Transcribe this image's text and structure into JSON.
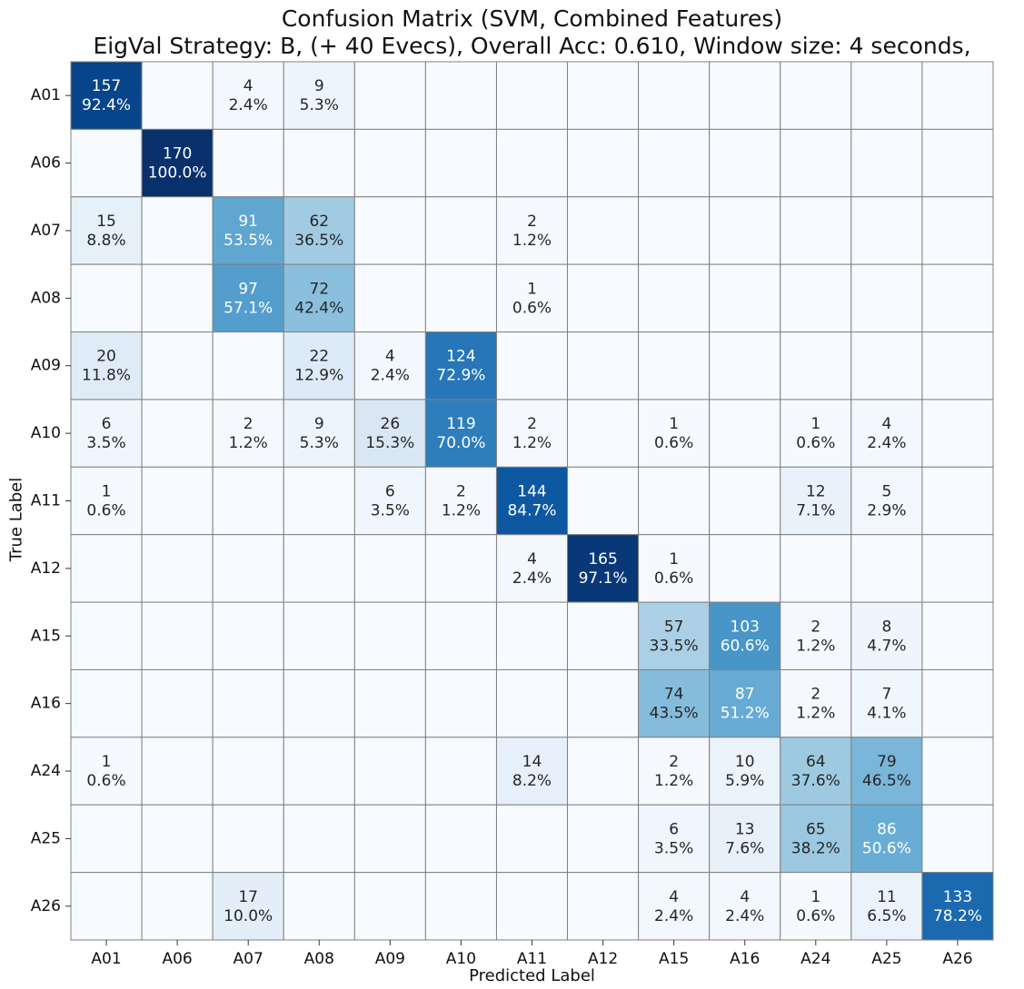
{
  "chart_data": {
    "type": "heatmap",
    "title": "Confusion Matrix (SVM, Combined Features)",
    "subtitle": "EigVal Strategy: B,  (+ 40 Evecs), Overall Acc: 0.610, Window size: 4 seconds,",
    "xlabel": "Predicted Label",
    "ylabel": "True Label",
    "labels": [
      "A01",
      "A06",
      "A07",
      "A08",
      "A09",
      "A10",
      "A11",
      "A12",
      "A15",
      "A16",
      "A24",
      "A25",
      "A26"
    ],
    "row_total": 170,
    "colormap": "Blues",
    "vmax": 170,
    "overall_accuracy": 0.61,
    "matrix": [
      [
        157,
        0,
        4,
        9,
        0,
        0,
        0,
        0,
        0,
        0,
        0,
        0,
        0
      ],
      [
        0,
        170,
        0,
        0,
        0,
        0,
        0,
        0,
        0,
        0,
        0,
        0,
        0
      ],
      [
        15,
        0,
        91,
        62,
        0,
        0,
        2,
        0,
        0,
        0,
        0,
        0,
        0
      ],
      [
        0,
        0,
        97,
        72,
        0,
        0,
        1,
        0,
        0,
        0,
        0,
        0,
        0
      ],
      [
        20,
        0,
        0,
        22,
        4,
        124,
        0,
        0,
        0,
        0,
        0,
        0,
        0
      ],
      [
        6,
        0,
        2,
        9,
        26,
        119,
        2,
        0,
        1,
        0,
        1,
        4,
        0
      ],
      [
        1,
        0,
        0,
        0,
        6,
        2,
        144,
        0,
        0,
        0,
        12,
        5,
        0
      ],
      [
        0,
        0,
        0,
        0,
        0,
        0,
        4,
        165,
        1,
        0,
        0,
        0,
        0
      ],
      [
        0,
        0,
        0,
        0,
        0,
        0,
        0,
        0,
        57,
        103,
        2,
        8,
        0
      ],
      [
        0,
        0,
        0,
        0,
        0,
        0,
        0,
        0,
        74,
        87,
        2,
        7,
        0
      ],
      [
        1,
        0,
        0,
        0,
        0,
        0,
        14,
        0,
        2,
        10,
        64,
        79,
        0
      ],
      [
        0,
        0,
        0,
        0,
        0,
        0,
        0,
        0,
        6,
        13,
        65,
        86,
        0
      ],
      [
        0,
        0,
        17,
        0,
        0,
        0,
        0,
        0,
        4,
        4,
        1,
        11,
        133
      ]
    ],
    "percent": [
      [
        "92.4%",
        "",
        "2.4%",
        "5.3%",
        "",
        "",
        "",
        "",
        "",
        "",
        "",
        "",
        ""
      ],
      [
        "",
        "100.0%",
        "",
        "",
        "",
        "",
        "",
        "",
        "",
        "",
        "",
        "",
        ""
      ],
      [
        "8.8%",
        "",
        "53.5%",
        "36.5%",
        "",
        "",
        "1.2%",
        "",
        "",
        "",
        "",
        "",
        ""
      ],
      [
        "",
        "",
        "57.1%",
        "42.4%",
        "",
        "",
        "0.6%",
        "",
        "",
        "",
        "",
        "",
        ""
      ],
      [
        "11.8%",
        "",
        "",
        "12.9%",
        "2.4%",
        "72.9%",
        "",
        "",
        "",
        "",
        "",
        "",
        ""
      ],
      [
        "3.5%",
        "",
        "1.2%",
        "5.3%",
        "15.3%",
        "70.0%",
        "1.2%",
        "",
        "0.6%",
        "",
        "0.6%",
        "2.4%",
        ""
      ],
      [
        "0.6%",
        "",
        "",
        "",
        "3.5%",
        "1.2%",
        "84.7%",
        "",
        "",
        "",
        "7.1%",
        "2.9%",
        ""
      ],
      [
        "",
        "",
        "",
        "",
        "",
        "",
        "2.4%",
        "97.1%",
        "0.6%",
        "",
        "",
        "",
        ""
      ],
      [
        "",
        "",
        "",
        "",
        "",
        "",
        "",
        "",
        "33.5%",
        "60.6%",
        "1.2%",
        "4.7%",
        ""
      ],
      [
        "",
        "",
        "",
        "",
        "",
        "",
        "",
        "",
        "43.5%",
        "51.2%",
        "1.2%",
        "4.1%",
        ""
      ],
      [
        "0.6%",
        "",
        "",
        "",
        "",
        "",
        "8.2%",
        "",
        "1.2%",
        "5.9%",
        "37.6%",
        "46.5%",
        ""
      ],
      [
        "",
        "",
        "",
        "",
        "",
        "",
        "",
        "",
        "3.5%",
        "7.6%",
        "38.2%",
        "50.6%",
        ""
      ],
      [
        "",
        "",
        "10.0%",
        "",
        "",
        "",
        "",
        "",
        "2.4%",
        "2.4%",
        "0.6%",
        "6.5%",
        "78.2%"
      ]
    ]
  },
  "colors": {
    "cell_border": "#808080",
    "text_dark": "#262626",
    "text_light": "#ffffff"
  }
}
